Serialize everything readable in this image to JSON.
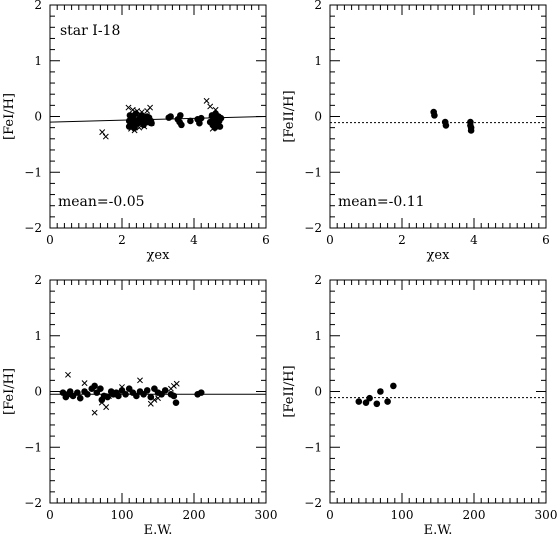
{
  "chart_data": [
    {
      "type": "scatter",
      "id": "p1",
      "xlabel": "χex",
      "ylabel": "[FeI/H]",
      "xlim": [
        0,
        6
      ],
      "ylim": [
        -2,
        2
      ],
      "xticks": [
        0,
        2,
        4,
        6
      ],
      "yticks": [
        -2,
        -1,
        0,
        1,
        2
      ],
      "annotations": {
        "top": "star I-18",
        "bottom": "mean=-0.05"
      },
      "ref_line": {
        "style": "solid",
        "points": [
          [
            0,
            -0.1
          ],
          [
            6,
            0.0
          ]
        ]
      },
      "dots": [
        [
          2.2,
          -0.08
        ],
        [
          2.2,
          -0.18
        ],
        [
          2.22,
          0.02
        ],
        [
          2.25,
          -0.12
        ],
        [
          2.28,
          -0.05
        ],
        [
          2.3,
          -0.15
        ],
        [
          2.3,
          0.0
        ],
        [
          2.32,
          -0.1
        ],
        [
          2.35,
          -0.2
        ],
        [
          2.38,
          0.05
        ],
        [
          2.4,
          -0.07
        ],
        [
          2.45,
          -0.12
        ],
        [
          2.5,
          -0.03
        ],
        [
          2.55,
          0.02
        ],
        [
          2.58,
          -0.08
        ],
        [
          2.6,
          -0.15
        ],
        [
          2.65,
          -0.05
        ],
        [
          2.7,
          0.0
        ],
        [
          2.72,
          -0.1
        ],
        [
          2.75,
          -0.02
        ],
        [
          2.8,
          -0.08
        ],
        [
          2.82,
          -0.12
        ],
        [
          3.3,
          -0.02
        ],
        [
          3.35,
          0.0
        ],
        [
          3.55,
          -0.05
        ],
        [
          3.6,
          -0.1
        ],
        [
          3.62,
          0.02
        ],
        [
          3.65,
          -0.15
        ],
        [
          3.9,
          -0.08
        ],
        [
          4.1,
          -0.05
        ],
        [
          4.15,
          -0.12
        ],
        [
          4.2,
          -0.03
        ],
        [
          4.45,
          -0.1
        ],
        [
          4.5,
          0.02
        ],
        [
          4.52,
          -0.15
        ],
        [
          4.55,
          -0.08
        ],
        [
          4.58,
          -0.2
        ],
        [
          4.6,
          0.05
        ],
        [
          4.62,
          -0.05
        ],
        [
          4.65,
          -0.12
        ],
        [
          4.68,
          0.0
        ],
        [
          4.7,
          -0.08
        ],
        [
          4.72,
          -0.18
        ],
        [
          4.75,
          -0.03
        ]
      ],
      "crosses": [
        [
          1.45,
          -0.28
        ],
        [
          1.55,
          -0.36
        ],
        [
          2.18,
          0.16
        ],
        [
          2.25,
          -0.22
        ],
        [
          2.3,
          0.12
        ],
        [
          2.35,
          -0.25
        ],
        [
          2.42,
          0.1
        ],
        [
          2.48,
          -0.2
        ],
        [
          2.55,
          0.08
        ],
        [
          2.62,
          -0.18
        ],
        [
          2.7,
          0.1
        ],
        [
          2.78,
          0.16
        ],
        [
          2.82,
          -0.12
        ],
        [
          4.35,
          0.28
        ],
        [
          4.45,
          0.18
        ],
        [
          4.48,
          -0.05
        ],
        [
          4.52,
          -0.22
        ],
        [
          4.6,
          0.12
        ],
        [
          4.65,
          -0.15
        ]
      ]
    },
    {
      "type": "scatter",
      "id": "p2",
      "xlabel": "χex",
      "ylabel": "[FeII/H]",
      "xlim": [
        0,
        6
      ],
      "ylim": [
        -2,
        2
      ],
      "xticks": [
        0,
        2,
        4,
        6
      ],
      "yticks": [
        -2,
        -1,
        0,
        1,
        2
      ],
      "annotations": {
        "top": "",
        "bottom": "mean=-0.11"
      },
      "ref_line": {
        "style": "dotted",
        "points": [
          [
            0,
            -0.11
          ],
          [
            6,
            -0.11
          ]
        ]
      },
      "dots": [
        [
          2.88,
          0.08
        ],
        [
          2.9,
          0.02
        ],
        [
          3.2,
          -0.1
        ],
        [
          3.22,
          -0.16
        ],
        [
          3.9,
          -0.1
        ],
        [
          3.9,
          -0.16
        ],
        [
          3.92,
          -0.2
        ],
        [
          3.92,
          -0.25
        ]
      ],
      "crosses": []
    },
    {
      "type": "scatter",
      "id": "p3",
      "xlabel": "E.W.",
      "ylabel": "[FeI/H]",
      "xlim": [
        0,
        300
      ],
      "ylim": [
        -2,
        2
      ],
      "xticks": [
        0,
        100,
        200,
        300
      ],
      "yticks": [
        -2,
        -1,
        0,
        1,
        2
      ],
      "annotations": {
        "top": "",
        "bottom": ""
      },
      "ref_line": {
        "style": "solid",
        "points": [
          [
            0,
            -0.05
          ],
          [
            300,
            -0.05
          ]
        ]
      },
      "dots": [
        [
          18,
          -0.02
        ],
        [
          22,
          -0.1
        ],
        [
          25,
          -0.05
        ],
        [
          28,
          0.0
        ],
        [
          32,
          -0.08
        ],
        [
          38,
          -0.02
        ],
        [
          42,
          -0.12
        ],
        [
          48,
          0.0
        ],
        [
          52,
          -0.05
        ],
        [
          58,
          0.05
        ],
        [
          62,
          0.1
        ],
        [
          65,
          -0.02
        ],
        [
          70,
          0.05
        ],
        [
          72,
          -0.15
        ],
        [
          75,
          -0.08
        ],
        [
          80,
          -0.1
        ],
        [
          85,
          0.0
        ],
        [
          88,
          -0.05
        ],
        [
          92,
          -0.02
        ],
        [
          95,
          -0.08
        ],
        [
          100,
          0.02
        ],
        [
          105,
          -0.05
        ],
        [
          110,
          0.05
        ],
        [
          115,
          -0.02
        ],
        [
          120,
          -0.08
        ],
        [
          125,
          0.0
        ],
        [
          130,
          -0.05
        ],
        [
          135,
          0.02
        ],
        [
          140,
          -0.1
        ],
        [
          145,
          0.05
        ],
        [
          150,
          -0.02
        ],
        [
          155,
          -0.05
        ],
        [
          160,
          0.02
        ],
        [
          168,
          -0.05
        ],
        [
          172,
          -0.08
        ],
        [
          175,
          -0.2
        ],
        [
          205,
          -0.05
        ],
        [
          210,
          -0.02
        ]
      ],
      "crosses": [
        [
          25,
          0.3
        ],
        [
          48,
          0.15
        ],
        [
          62,
          -0.38
        ],
        [
          72,
          -0.2
        ],
        [
          78,
          -0.28
        ],
        [
          82,
          -0.08
        ],
        [
          100,
          0.08
        ],
        [
          125,
          0.2
        ],
        [
          140,
          -0.22
        ],
        [
          145,
          -0.15
        ],
        [
          150,
          -0.12
        ],
        [
          168,
          0.05
        ],
        [
          172,
          0.1
        ],
        [
          176,
          0.14
        ]
      ]
    },
    {
      "type": "scatter",
      "id": "p4",
      "xlabel": "E.W.",
      "ylabel": "[FeII/H]",
      "xlim": [
        0,
        300
      ],
      "ylim": [
        -2,
        2
      ],
      "xticks": [
        0,
        100,
        200,
        300
      ],
      "yticks": [
        -2,
        -1,
        0,
        1,
        2
      ],
      "annotations": {
        "top": "",
        "bottom": ""
      },
      "ref_line": {
        "style": "dotted",
        "points": [
          [
            0,
            -0.11
          ],
          [
            300,
            -0.11
          ]
        ]
      },
      "dots": [
        [
          40,
          -0.18
        ],
        [
          50,
          -0.2
        ],
        [
          55,
          -0.12
        ],
        [
          65,
          -0.22
        ],
        [
          70,
          0.0
        ],
        [
          80,
          -0.18
        ],
        [
          88,
          0.1
        ]
      ],
      "crosses": []
    }
  ]
}
